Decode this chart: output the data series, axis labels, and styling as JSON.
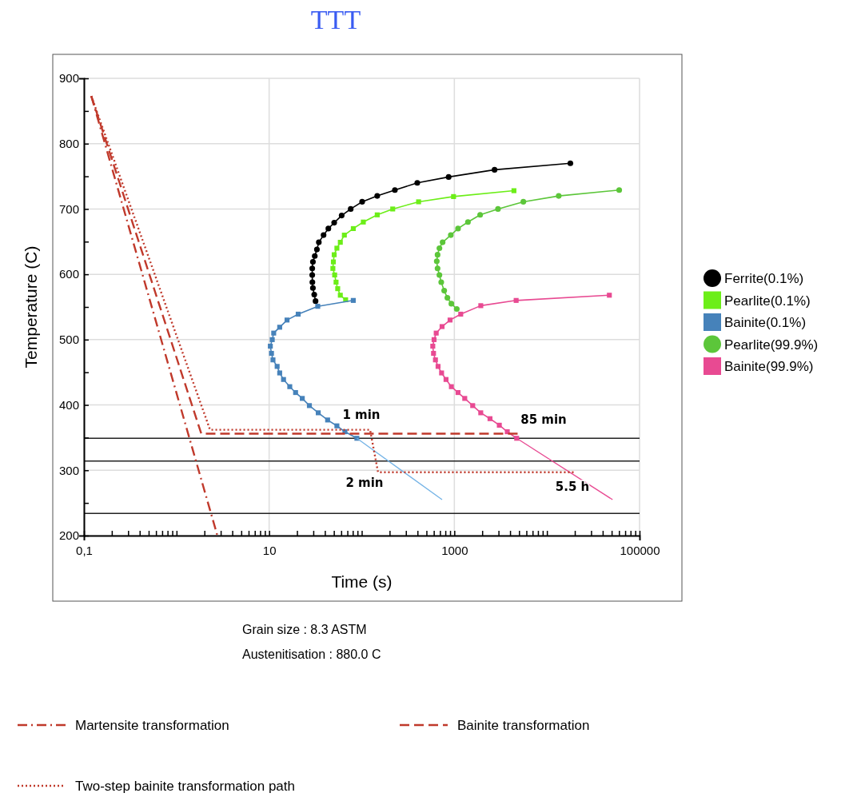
{
  "chart_data": {
    "type": "line",
    "title": "TTT",
    "xlabel": "Time (s)",
    "ylabel": "Temperature (C)",
    "log": "x",
    "grid": true,
    "legend": "right",
    "xlim": [
      0.1,
      100000
    ],
    "xticks": [
      {
        "value": 0.1,
        "label": "0,1"
      },
      {
        "value": 0.2,
        "label": null
      },
      {
        "value": 0.3,
        "label": null
      },
      {
        "value": 0.4,
        "label": null
      },
      {
        "value": 0.5,
        "label": null
      },
      {
        "value": 0.6,
        "label": null
      },
      {
        "value": 0.7,
        "label": null
      },
      {
        "value": 0.8,
        "label": null
      },
      {
        "value": 0.9,
        "label": null
      },
      {
        "value": 1,
        "label": null
      },
      {
        "value": 2,
        "label": null
      },
      {
        "value": 3,
        "label": null
      },
      {
        "value": 4,
        "label": null
      },
      {
        "value": 5,
        "label": null
      },
      {
        "value": 6,
        "label": null
      },
      {
        "value": 7,
        "label": null
      },
      {
        "value": 8,
        "label": null
      },
      {
        "value": 9,
        "label": null
      },
      10,
      {
        "value": 20,
        "label": null
      },
      {
        "value": 30,
        "label": null
      },
      {
        "value": 40,
        "label": null
      },
      {
        "value": 50,
        "label": null
      },
      {
        "value": 60,
        "label": null
      },
      {
        "value": 70,
        "label": null
      },
      {
        "value": 80,
        "label": null
      },
      {
        "value": 90,
        "label": null
      },
      {
        "value": 100,
        "label": null
      },
      {
        "value": 200,
        "label": null
      },
      {
        "value": 300,
        "label": null
      },
      {
        "value": 400,
        "label": null
      },
      {
        "value": 500,
        "label": null
      },
      {
        "value": 600,
        "label": null
      },
      {
        "value": 700,
        "label": null
      },
      {
        "value": 800,
        "label": null
      },
      {
        "value": 900,
        "label": null
      },
      1000,
      {
        "value": 2000,
        "label": null
      },
      {
        "value": 3000,
        "label": null
      },
      {
        "value": 4000,
        "label": null
      },
      {
        "value": 5000,
        "label": null
      },
      {
        "value": 6000,
        "label": null
      },
      {
        "value": 7000,
        "label": null
      },
      {
        "value": 8000,
        "label": null
      },
      {
        "value": 9000,
        "label": null
      },
      {
        "value": 10000,
        "label": null
      },
      {
        "value": 20000,
        "label": null
      },
      {
        "value": 30000,
        "label": null
      },
      {
        "value": 40000,
        "label": null
      },
      {
        "value": 50000,
        "label": null
      },
      {
        "value": 60000,
        "label": null
      },
      {
        "value": 70000,
        "label": null
      },
      {
        "value": 80000,
        "label": null
      },
      {
        "value": 90000,
        "label": null
      },
      100000
    ],
    "ylim": [
      200,
      900
    ],
    "yticks": [
      200,
      {
        "value": 250,
        "label": null
      },
      300,
      {
        "value": 350,
        "label": null
      },
      400,
      {
        "value": 450,
        "label": null
      },
      500,
      {
        "value": 550,
        "label": null
      },
      600,
      {
        "value": 650,
        "label": null
      },
      700,
      {
        "value": 750,
        "label": null
      },
      800,
      {
        "value": 850,
        "label": null
      },
      900
    ],
    "ref_lines": [
      {
        "axis": "y",
        "value": 349,
        "color": "#222222"
      },
      {
        "axis": "y",
        "value": 314,
        "color": "#222222"
      },
      {
        "axis": "y",
        "value": 234,
        "color": "#222222"
      }
    ],
    "series": [
      {
        "name": "Ferrite(0.1%)",
        "color": "#000000",
        "marker": "circle",
        "x": [
          31.7,
          30.7,
          29.7,
          29.3,
          29.2,
          29.2,
          29.7,
          31.1,
          32.8,
          34.4,
          38.7,
          43.6,
          50.4,
          60.7,
          76,
          101,
          147,
          228,
          398,
          868,
          2717,
          17900
        ],
        "values": [
          559,
          569,
          579,
          588,
          599,
          609,
          619,
          628,
          638,
          649,
          660,
          670,
          679,
          690,
          700,
          711,
          720,
          729,
          740,
          749,
          760,
          770
        ]
      },
      {
        "name": "Pearlite(0.1%)",
        "color": "#6cee18",
        "marker": "square",
        "x": [
          67,
          58.7,
          55,
          52.8,
          51,
          48.8,
          49.4,
          50.4,
          53.9,
          58.7,
          64.9,
          81.1,
          104,
          147,
          216,
          411,
          980,
          4400
        ],
        "values": [
          561,
          568,
          578,
          588,
          599,
          609,
          619,
          630,
          640,
          649,
          660,
          670,
          680,
          691,
          700,
          711,
          719,
          728
        ]
      },
      {
        "name": "Bainite(0.1%)",
        "color": "#4682ba",
        "marker": "square",
        "x": [
          81,
          33.5,
          20.6,
          15.6,
          13,
          11.2,
          10.8,
          10.3,
          10.6,
          11,
          12.2,
          13,
          14.3,
          16.7,
          19.3,
          22.8,
          27.2,
          33.9,
          42.8,
          53.9,
          65.8,
          88.6
        ],
        "values": [
          560,
          551,
          539,
          530,
          519,
          510,
          500,
          490,
          479,
          469,
          459,
          449,
          439,
          428,
          419,
          410,
          399,
          388,
          377,
          368,
          359,
          349
        ]
      },
      {
        "color": "#74b3e6",
        "marker": "none",
        "x": [
          88.6,
          737
        ],
        "values": [
          349,
          255
        ]
      },
      {
        "name": "Pearlite(99.9%)",
        "color": "#5cc63a",
        "marker": "circle",
        "x": [
          1062,
          929,
          841,
          777,
          722,
          690,
          659,
          646,
          659,
          690,
          747,
          916,
          1096,
          1403,
          1900,
          2960,
          5560,
          13400,
          60300
        ],
        "values": [
          547,
          555,
          564,
          575,
          588,
          599,
          609,
          620,
          630,
          640,
          649,
          660,
          670,
          680,
          691,
          700,
          711,
          720,
          729
        ]
      },
      {
        "name": "Bainite(99.9%)",
        "color": "#e84a92",
        "marker": "square",
        "x": [
          47200,
          4650,
          1930,
          1172,
          899,
          737,
          637,
          604,
          585,
          596,
          625,
          667,
          728,
          813,
          929,
          1096,
          1295,
          1578,
          1928,
          2427,
          3060,
          3730,
          4710
        ],
        "values": [
          568,
          560,
          552,
          539,
          530,
          520,
          510,
          500,
          490,
          479,
          469,
          459,
          449,
          439,
          428,
          419,
          410,
          399,
          388,
          379,
          369,
          359,
          349
        ]
      },
      {
        "color": "#e84a92",
        "marker": "none",
        "x": [
          4710,
          51100
        ],
        "values": [
          349,
          255
        ]
      },
      {
        "name": "Martensite transformation",
        "color": "#c0392b",
        "marker": "none",
        "line_style": "dashdot",
        "x": [
          0.12,
          2.76
        ],
        "values": [
          873,
          200
        ]
      },
      {
        "name": "Bainite transformation",
        "color": "#c0392b",
        "marker": "none",
        "line_style": "dashed",
        "x": [
          0.12,
          1.85,
          5100
        ],
        "values": [
          873,
          356,
          356
        ]
      },
      {
        "name": "Two-step bainite transformation path",
        "color": "#c0392b",
        "marker": "none",
        "line_style": "dotted",
        "x": [
          0.12,
          2.3,
          123,
          150,
          19800
        ],
        "values": [
          873,
          362,
          362,
          297,
          297
        ]
      }
    ],
    "annotations": [
      "1 min",
      "2 min",
      "85 min",
      "5.5 h",
      "Grain size : 8.3 ASTM",
      "Austenitisation : 880.0 C"
    ]
  }
}
